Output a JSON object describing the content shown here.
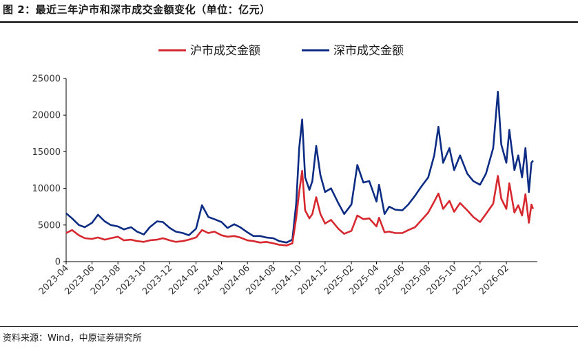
{
  "header": {
    "title": "图 2：最近三年沪市和深市成交金额变化（单位：亿元）"
  },
  "footer": {
    "source": "资料来源：Wind，中原证券研究所"
  },
  "colors": {
    "sh": "#d7282f",
    "sz": "#0c2c84"
  },
  "chart_data": {
    "type": "line",
    "title": "",
    "xlabel": "",
    "ylabel": "",
    "ylim": [
      0,
      25000
    ],
    "yticks": [
      "0",
      "5000",
      "10000",
      "15000",
      "20000",
      "25000"
    ],
    "xlim": [
      "2023-04",
      "2026-04"
    ],
    "xticks": [
      "2023-04",
      "2023-06",
      "2023-08",
      "2023-10",
      "2023-12",
      "2024-02",
      "2024-04",
      "2024-06",
      "2024-08",
      "2024-10",
      "2024-12",
      "2025-02",
      "2025-04",
      "2025-06",
      "2025-08",
      "2025-10",
      "2025-12",
      "2026-02"
    ],
    "legend_position": "top-center",
    "grid": false,
    "series": [
      {
        "name": "沪市成交金额",
        "color": "#d7282f",
        "points": [
          [
            "2023-04-01",
            3900
          ],
          [
            "2023-04-15",
            4300
          ],
          [
            "2023-05-01",
            3600
          ],
          [
            "2023-05-15",
            3200
          ],
          [
            "2023-06-01",
            3100
          ],
          [
            "2023-06-15",
            3300
          ],
          [
            "2023-07-01",
            3000
          ],
          [
            "2023-07-15",
            3200
          ],
          [
            "2023-08-01",
            3400
          ],
          [
            "2023-08-15",
            2900
          ],
          [
            "2023-09-01",
            3000
          ],
          [
            "2023-09-15",
            2800
          ],
          [
            "2023-10-01",
            2700
          ],
          [
            "2023-10-15",
            2900
          ],
          [
            "2023-11-01",
            3000
          ],
          [
            "2023-11-15",
            3200
          ],
          [
            "2023-12-01",
            2900
          ],
          [
            "2023-12-15",
            2700
          ],
          [
            "2024-01-01",
            2800
          ],
          [
            "2024-01-15",
            3000
          ],
          [
            "2024-02-01",
            3300
          ],
          [
            "2024-02-15",
            4300
          ],
          [
            "2024-03-01",
            3900
          ],
          [
            "2024-03-15",
            4100
          ],
          [
            "2024-04-01",
            3600
          ],
          [
            "2024-04-15",
            3400
          ],
          [
            "2024-05-01",
            3500
          ],
          [
            "2024-05-15",
            3300
          ],
          [
            "2024-06-01",
            2900
          ],
          [
            "2024-06-15",
            2800
          ],
          [
            "2024-07-01",
            2600
          ],
          [
            "2024-07-15",
            2700
          ],
          [
            "2024-08-01",
            2500
          ],
          [
            "2024-08-15",
            2300
          ],
          [
            "2024-09-01",
            2200
          ],
          [
            "2024-09-15",
            2500
          ],
          [
            "2024-09-24",
            6000
          ],
          [
            "2024-10-01",
            9500
          ],
          [
            "2024-10-08",
            12400
          ],
          [
            "2024-10-15",
            7000
          ],
          [
            "2024-10-25",
            5900
          ],
          [
            "2024-11-01",
            6500
          ],
          [
            "2024-11-10",
            8800
          ],
          [
            "2024-11-20",
            6500
          ],
          [
            "2024-12-01",
            5200
          ],
          [
            "2024-12-15",
            5700
          ],
          [
            "2025-01-01",
            4500
          ],
          [
            "2025-01-15",
            3800
          ],
          [
            "2025-02-01",
            4200
          ],
          [
            "2025-02-15",
            6300
          ],
          [
            "2025-03-01",
            5800
          ],
          [
            "2025-03-15",
            5900
          ],
          [
            "2025-04-01",
            4800
          ],
          [
            "2025-04-07",
            6000
          ],
          [
            "2025-04-20",
            4000
          ],
          [
            "2025-05-01",
            4100
          ],
          [
            "2025-05-15",
            3900
          ],
          [
            "2025-06-01",
            3900
          ],
          [
            "2025-06-15",
            4300
          ],
          [
            "2025-07-01",
            4700
          ],
          [
            "2025-07-15",
            5600
          ],
          [
            "2025-08-01",
            6700
          ],
          [
            "2025-08-15",
            8200
          ],
          [
            "2025-08-25",
            9300
          ],
          [
            "2025-09-05",
            7200
          ],
          [
            "2025-09-20",
            8300
          ],
          [
            "2025-10-01",
            6800
          ],
          [
            "2025-10-15",
            8000
          ],
          [
            "2025-11-01",
            7000
          ],
          [
            "2025-11-15",
            6100
          ],
          [
            "2025-12-01",
            5400
          ],
          [
            "2025-12-15",
            6500
          ],
          [
            "2026-01-01",
            7900
          ],
          [
            "2026-01-12",
            11700
          ],
          [
            "2026-01-20",
            8600
          ],
          [
            "2026-02-01",
            7200
          ],
          [
            "2026-02-08",
            10700
          ],
          [
            "2026-02-20",
            6700
          ],
          [
            "2026-03-01",
            7700
          ],
          [
            "2026-03-10",
            6300
          ],
          [
            "2026-03-18",
            9200
          ],
          [
            "2026-03-26",
            5300
          ],
          [
            "2026-04-01",
            7800
          ],
          [
            "2026-04-05",
            7200
          ]
        ]
      },
      {
        "name": "深市成交金额",
        "color": "#0c2c84",
        "points": [
          [
            "2023-04-01",
            6600
          ],
          [
            "2023-04-15",
            5900
          ],
          [
            "2023-05-01",
            5000
          ],
          [
            "2023-05-15",
            4700
          ],
          [
            "2023-06-01",
            5300
          ],
          [
            "2023-06-15",
            6400
          ],
          [
            "2023-07-01",
            5500
          ],
          [
            "2023-07-15",
            5000
          ],
          [
            "2023-08-01",
            4800
          ],
          [
            "2023-08-15",
            4400
          ],
          [
            "2023-09-01",
            4700
          ],
          [
            "2023-09-15",
            4100
          ],
          [
            "2023-10-01",
            3700
          ],
          [
            "2023-10-15",
            4700
          ],
          [
            "2023-11-01",
            5500
          ],
          [
            "2023-11-15",
            5400
          ],
          [
            "2023-12-01",
            4600
          ],
          [
            "2023-12-15",
            4100
          ],
          [
            "2024-01-01",
            3900
          ],
          [
            "2024-01-15",
            3600
          ],
          [
            "2024-02-01",
            4500
          ],
          [
            "2024-02-15",
            7700
          ],
          [
            "2024-03-01",
            6100
          ],
          [
            "2024-03-15",
            5800
          ],
          [
            "2024-04-01",
            5400
          ],
          [
            "2024-04-15",
            4600
          ],
          [
            "2024-05-01",
            5100
          ],
          [
            "2024-05-15",
            4700
          ],
          [
            "2024-06-01",
            4000
          ],
          [
            "2024-06-15",
            3500
          ],
          [
            "2024-07-01",
            3500
          ],
          [
            "2024-07-15",
            3300
          ],
          [
            "2024-08-01",
            3200
          ],
          [
            "2024-08-15",
            2800
          ],
          [
            "2024-09-01",
            2600
          ],
          [
            "2024-09-15",
            3000
          ],
          [
            "2024-09-24",
            8000
          ],
          [
            "2024-10-01",
            15500
          ],
          [
            "2024-10-08",
            19400
          ],
          [
            "2024-10-15",
            11500
          ],
          [
            "2024-10-25",
            9800
          ],
          [
            "2024-11-01",
            11000
          ],
          [
            "2024-11-10",
            15800
          ],
          [
            "2024-11-20",
            11800
          ],
          [
            "2024-12-01",
            9500
          ],
          [
            "2024-12-15",
            10000
          ],
          [
            "2025-01-01",
            8000
          ],
          [
            "2025-01-15",
            6500
          ],
          [
            "2025-02-01",
            7800
          ],
          [
            "2025-02-15",
            13200
          ],
          [
            "2025-03-01",
            10800
          ],
          [
            "2025-03-15",
            11000
          ],
          [
            "2025-04-01",
            8200
          ],
          [
            "2025-04-07",
            10500
          ],
          [
            "2025-04-20",
            6500
          ],
          [
            "2025-05-01",
            7500
          ],
          [
            "2025-05-15",
            7100
          ],
          [
            "2025-06-01",
            7000
          ],
          [
            "2025-06-15",
            7800
          ],
          [
            "2025-07-01",
            9000
          ],
          [
            "2025-07-15",
            10200
          ],
          [
            "2025-08-01",
            11500
          ],
          [
            "2025-08-15",
            14500
          ],
          [
            "2025-08-25",
            18400
          ],
          [
            "2025-09-05",
            13500
          ],
          [
            "2025-09-20",
            15500
          ],
          [
            "2025-10-01",
            12500
          ],
          [
            "2025-10-15",
            14500
          ],
          [
            "2025-11-01",
            12000
          ],
          [
            "2025-11-15",
            11000
          ],
          [
            "2025-12-01",
            10500
          ],
          [
            "2025-12-15",
            12000
          ],
          [
            "2026-01-01",
            15500
          ],
          [
            "2026-01-12",
            23200
          ],
          [
            "2026-01-20",
            16000
          ],
          [
            "2026-02-01",
            13500
          ],
          [
            "2026-02-08",
            18000
          ],
          [
            "2026-02-20",
            12500
          ],
          [
            "2026-03-01",
            14500
          ],
          [
            "2026-03-10",
            11500
          ],
          [
            "2026-03-18",
            15500
          ],
          [
            "2026-03-26",
            9500
          ],
          [
            "2026-04-01",
            13500
          ],
          [
            "2026-04-05",
            13800
          ]
        ]
      }
    ]
  }
}
